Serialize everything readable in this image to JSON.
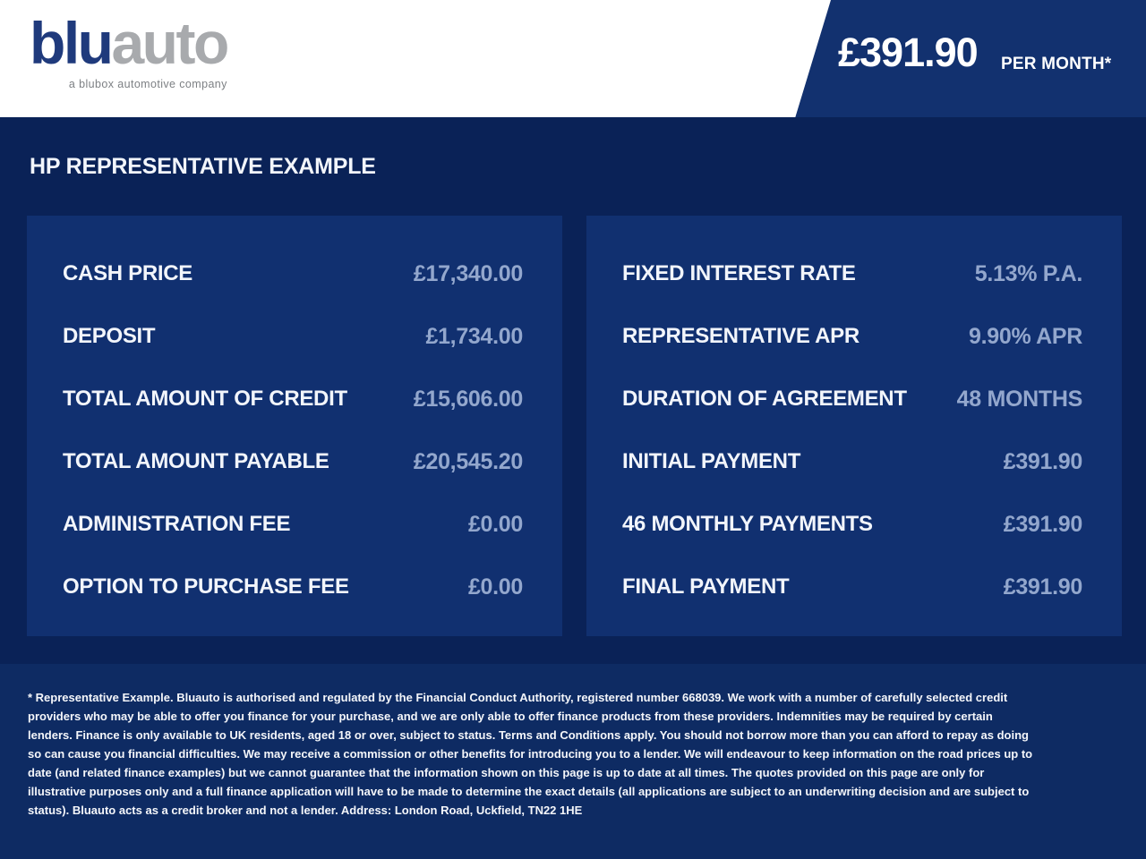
{
  "colors": {
    "brand_navy": "#12316f",
    "page_bg": "#0a2257",
    "panel_bg": "#113070",
    "footer_bg": "#0e2b63",
    "logo_blue": "#1f3a7c",
    "logo_gray": "#a8aaad",
    "label_text": "#f2f5fb",
    "value_text": "#93a7cd"
  },
  "header": {
    "logo_part1": "blu",
    "logo_part2": "auto",
    "tagline": "a blubox automotive company",
    "price": "£391.90",
    "price_suffix": "PER MONTH*"
  },
  "title": "HP REPRESENTATIVE EXAMPLE",
  "left_panel": {
    "rows": [
      {
        "label": "CASH PRICE",
        "value": "£17,340.00"
      },
      {
        "label": "DEPOSIT",
        "value": "£1,734.00"
      },
      {
        "label": "TOTAL AMOUNT OF CREDIT",
        "value": "£15,606.00"
      },
      {
        "label": "TOTAL AMOUNT PAYABLE",
        "value": "£20,545.20"
      },
      {
        "label": "ADMINISTRATION FEE",
        "value": "£0.00"
      },
      {
        "label": "OPTION TO PURCHASE FEE",
        "value": "£0.00"
      }
    ]
  },
  "right_panel": {
    "rows": [
      {
        "label": "FIXED INTEREST RATE",
        "value": "5.13% P.A."
      },
      {
        "label": "REPRESENTATIVE APR",
        "value": "9.90% APR"
      },
      {
        "label": "DURATION OF AGREEMENT",
        "value": "48 MONTHS"
      },
      {
        "label": "INITIAL PAYMENT",
        "value": "£391.90"
      },
      {
        "label": "46 MONTHLY PAYMENTS",
        "value": "£391.90"
      },
      {
        "label": "FINAL PAYMENT",
        "value": "£391.90"
      }
    ]
  },
  "footer": {
    "disclaimer": "* Representative Example. Bluauto is authorised and regulated by the Financial Conduct Authority, registered number 668039. We work with a number of carefully selected credit providers who may be able to offer you finance for your purchase, and we are only able to offer finance products from these providers. Indemnities may be required by certain lenders. Finance is only available to UK residents, aged 18 or over, subject to status. Terms and Conditions apply. You should not borrow more than you can afford to repay as doing so can cause you financial difficulties. We may receive a commission or other benefits for introducing you to a lender. We will endeavour to keep information on the road prices up to date (and related finance examples) but we cannot guarantee that the information shown on this page is up to date at all times. The quotes provided on this page are only for illustrative purposes only and a full finance application will have to be made to determine the exact details (all applications are subject to an underwriting decision and are subject to status). Bluauto acts as a credit broker and not a lender. Address: London Road, Uckfield, TN22 1HE"
  }
}
